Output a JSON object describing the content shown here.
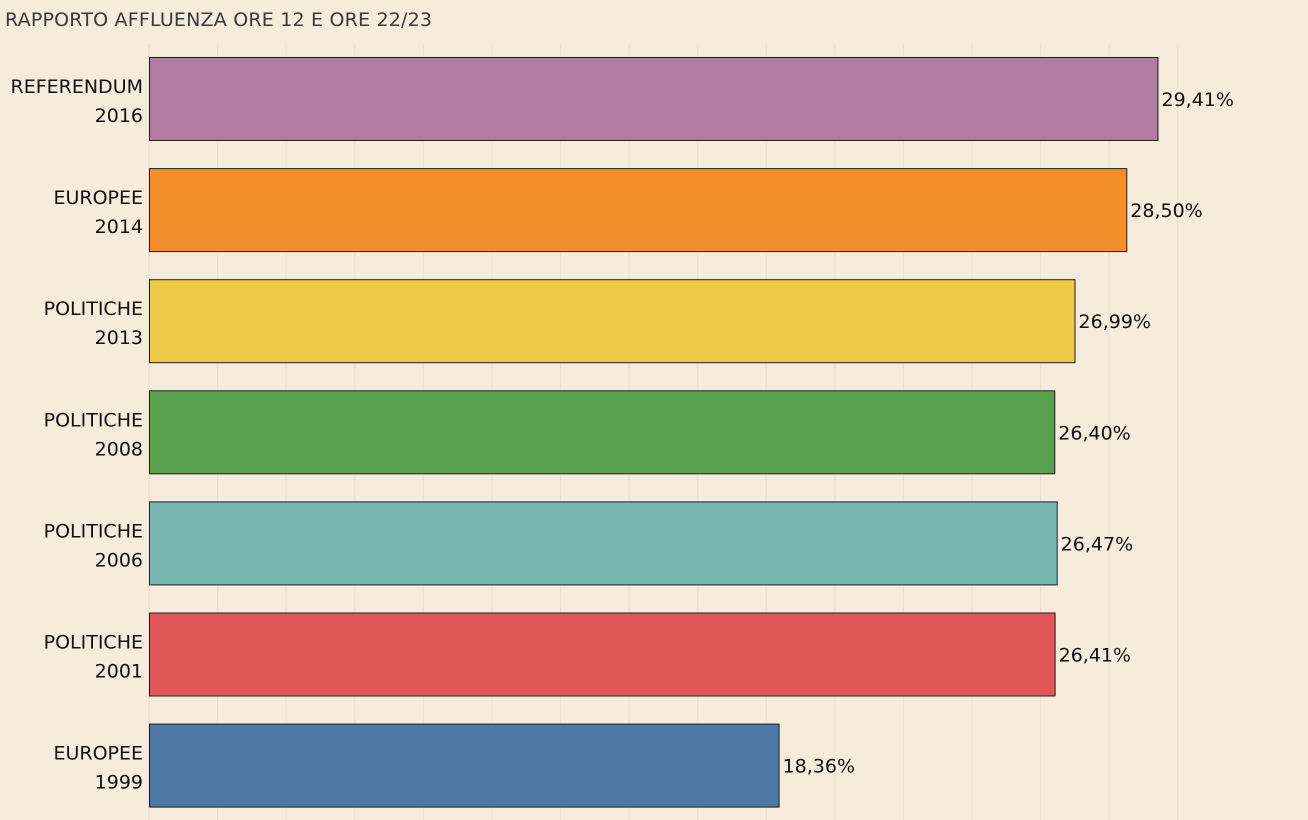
{
  "chart_data": {
    "type": "bar",
    "orientation": "horizontal",
    "title": "RAPPORTO AFFLUENZA ORE 12 E ORE 22/23",
    "xlabel": "",
    "ylabel": "",
    "xlim": [
      0,
      30
    ],
    "grid": true,
    "legend": "none",
    "categories": [
      {
        "line1": "REFERENDUM",
        "line2": "2016"
      },
      {
        "line1": "EUROPEE",
        "line2": "2014"
      },
      {
        "line1": "POLITICHE",
        "line2": "2013"
      },
      {
        "line1": "POLITICHE",
        "line2": "2008"
      },
      {
        "line1": "POLITICHE",
        "line2": "2006"
      },
      {
        "line1": "POLITICHE",
        "line2": "2001"
      },
      {
        "line1": "EUROPEE",
        "line2": "1999"
      }
    ],
    "values": [
      29.41,
      28.5,
      26.99,
      26.4,
      26.47,
      26.41,
      18.36
    ],
    "value_labels": [
      "29,41%",
      "28,50%",
      "26,99%",
      "26,40%",
      "26,47%",
      "26,41%",
      "18,36%"
    ],
    "colors": [
      "#b27ba2",
      "#f28e2c",
      "#edc948",
      "#59a14f",
      "#76b7b2",
      "#e15759",
      "#4e79a7"
    ]
  }
}
